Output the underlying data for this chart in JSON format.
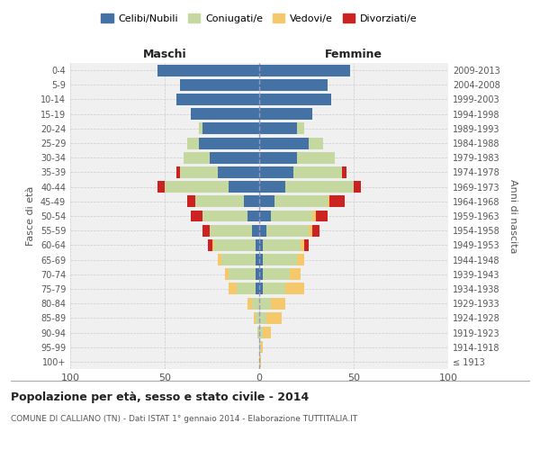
{
  "age_groups": [
    "100+",
    "95-99",
    "90-94",
    "85-89",
    "80-84",
    "75-79",
    "70-74",
    "65-69",
    "60-64",
    "55-59",
    "50-54",
    "45-49",
    "40-44",
    "35-39",
    "30-34",
    "25-29",
    "20-24",
    "15-19",
    "10-14",
    "5-9",
    "0-4"
  ],
  "birth_years": [
    "≤ 1913",
    "1914-1918",
    "1919-1923",
    "1924-1928",
    "1929-1933",
    "1934-1938",
    "1939-1943",
    "1944-1948",
    "1949-1953",
    "1954-1958",
    "1959-1963",
    "1964-1968",
    "1969-1973",
    "1974-1978",
    "1979-1983",
    "1984-1988",
    "1989-1993",
    "1994-1998",
    "1999-2003",
    "2004-2008",
    "2009-2013"
  ],
  "males": {
    "celibi": [
      0,
      0,
      0,
      0,
      0,
      2,
      2,
      2,
      2,
      4,
      6,
      8,
      16,
      22,
      26,
      32,
      30,
      36,
      44,
      42,
      54
    ],
    "coniugati": [
      0,
      0,
      1,
      2,
      4,
      10,
      14,
      18,
      22,
      22,
      24,
      26,
      34,
      20,
      14,
      6,
      2,
      0,
      0,
      0,
      0
    ],
    "vedovi": [
      0,
      0,
      0,
      1,
      2,
      4,
      2,
      2,
      1,
      0,
      0,
      0,
      0,
      0,
      0,
      0,
      0,
      0,
      0,
      0,
      0
    ],
    "divorziati": [
      0,
      0,
      0,
      0,
      0,
      0,
      0,
      0,
      2,
      4,
      6,
      4,
      4,
      2,
      0,
      0,
      0,
      0,
      0,
      0,
      0
    ]
  },
  "females": {
    "nubili": [
      0,
      0,
      0,
      0,
      0,
      2,
      2,
      2,
      2,
      4,
      6,
      8,
      14,
      18,
      20,
      26,
      20,
      28,
      38,
      36,
      48
    ],
    "coniugate": [
      0,
      1,
      2,
      4,
      6,
      12,
      14,
      18,
      20,
      22,
      22,
      28,
      36,
      26,
      20,
      8,
      4,
      0,
      0,
      0,
      0
    ],
    "vedove": [
      1,
      1,
      4,
      8,
      8,
      10,
      6,
      4,
      2,
      2,
      2,
      1,
      0,
      0,
      0,
      0,
      0,
      0,
      0,
      0,
      0
    ],
    "divorziate": [
      0,
      0,
      0,
      0,
      0,
      0,
      0,
      0,
      2,
      4,
      6,
      8,
      4,
      2,
      0,
      0,
      0,
      0,
      0,
      0,
      0
    ]
  },
  "color_celibi": "#4472a4",
  "color_coniugati": "#c5d8a0",
  "color_vedovi": "#f5c96b",
  "color_divorziati": "#cc2222",
  "xlim": 100,
  "title": "Popolazione per età, sesso e stato civile - 2014",
  "subtitle": "COMUNE DI CALLIANO (TN) - Dati ISTAT 1° gennaio 2014 - Elaborazione TUTTITALIA.IT",
  "ylabel_left": "Fasce di età",
  "ylabel_right": "Anni di nascita",
  "xlabel_left": "Maschi",
  "xlabel_right": "Femmine",
  "bg_color": "#f0f0f0"
}
